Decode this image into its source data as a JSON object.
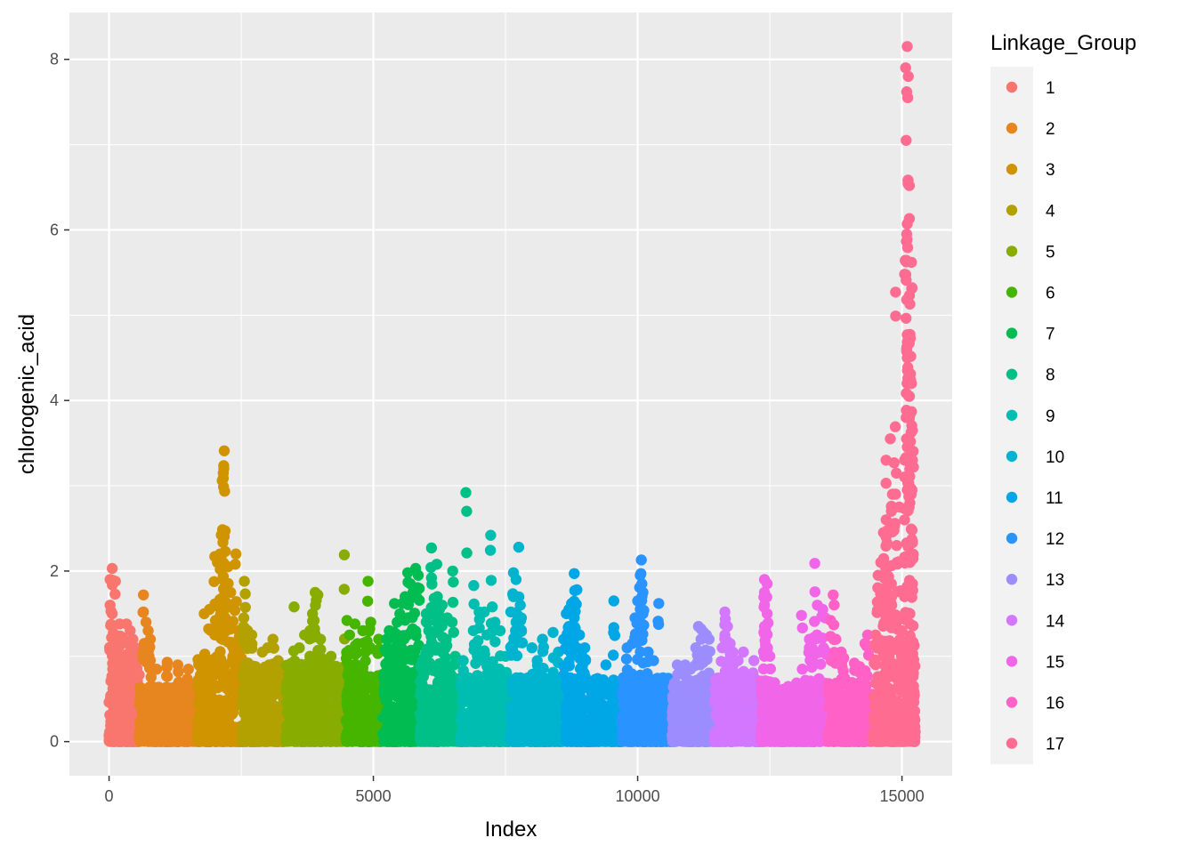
{
  "chart_data": {
    "type": "scatter",
    "xlabel": "Index",
    "ylabel": "chlorogenic_acid",
    "xlim": [
      -750,
      15950
    ],
    "ylim": [
      -0.4,
      8.55
    ],
    "x_ticks": [
      0,
      5000,
      10000,
      15000
    ],
    "x_tick_labels": [
      "0",
      "5000",
      "10000",
      "15000"
    ],
    "y_ticks": [
      0,
      2,
      4,
      6,
      8
    ],
    "y_tick_labels": [
      "0",
      "2",
      "4",
      "6",
      "8"
    ],
    "grid": true,
    "legend": {
      "title": "Linkage_Group",
      "placement": "right"
    },
    "series": [
      {
        "name": "1",
        "color": "#F8766D",
        "x_range": [
          0,
          570
        ],
        "base_max": 0.95,
        "peaks": [
          [
            60,
            2.03
          ],
          [
            20,
            1.9
          ],
          [
            80,
            1.88
          ],
          [
            120,
            1.88
          ],
          [
            20,
            1.6
          ],
          [
            60,
            1.5
          ],
          [
            200,
            1.38
          ],
          [
            330,
            1.38
          ],
          [
            400,
            1.3
          ],
          [
            100,
            1.25
          ],
          [
            250,
            1.22
          ],
          [
            450,
            1.2
          ],
          [
            500,
            1.1
          ]
        ]
      },
      {
        "name": "2",
        "color": "#E7851E",
        "x_range": [
          570,
          1670
        ],
        "base_max": 0.65,
        "peaks": [
          [
            650,
            1.72
          ],
          [
            650,
            1.52
          ],
          [
            700,
            1.4
          ],
          [
            740,
            1.3
          ],
          [
            780,
            1.2
          ],
          [
            1100,
            0.93
          ],
          [
            1300,
            0.9
          ],
          [
            1500,
            0.85
          ],
          [
            900,
            0.85
          ]
        ]
      },
      {
        "name": "3",
        "color": "#D09400",
        "x_range": [
          1670,
          2520
        ],
        "base_max": 1.0,
        "peaks": [
          [
            2180,
            3.41
          ],
          [
            2170,
            3.2
          ],
          [
            2160,
            3.15
          ],
          [
            2140,
            3.06
          ],
          [
            2400,
            2.2
          ],
          [
            2000,
            2.17
          ],
          [
            2100,
            2.2
          ],
          [
            2200,
            2.23
          ],
          [
            2050,
            2.1
          ],
          [
            2250,
            2.05
          ],
          [
            2150,
            1.9
          ],
          [
            2300,
            1.75
          ],
          [
            1900,
            1.55
          ],
          [
            1800,
            1.5
          ],
          [
            2350,
            1.6
          ],
          [
            2200,
            1.45
          ],
          [
            2100,
            1.35
          ],
          [
            2000,
            1.25
          ],
          [
            2450,
            1.3
          ],
          [
            2500,
            1.2
          ]
        ]
      },
      {
        "name": "4",
        "color": "#B2A100",
        "x_range": [
          2520,
          3350
        ],
        "base_max": 0.9,
        "peaks": [
          [
            2560,
            1.88
          ],
          [
            2550,
            1.45
          ],
          [
            2620,
            1.3
          ],
          [
            2700,
            1.25
          ],
          [
            3100,
            1.2
          ],
          [
            3000,
            1.1
          ],
          [
            2900,
            1.05
          ],
          [
            3200,
            0.95
          ]
        ]
      },
      {
        "name": "5",
        "color": "#89AC00",
        "x_range": [
          3350,
          4480
        ],
        "base_max": 0.95,
        "peaks": [
          [
            4450,
            2.19
          ],
          [
            3900,
            1.75
          ],
          [
            3950,
            1.72
          ],
          [
            3500,
            1.58
          ],
          [
            3850,
            1.5
          ],
          [
            3880,
            1.42
          ],
          [
            3800,
            1.3
          ],
          [
            3700,
            1.25
          ],
          [
            4000,
            1.2
          ],
          [
            4200,
            1.0
          ],
          [
            3600,
            1.1
          ]
        ]
      },
      {
        "name": "6",
        "color": "#45B500",
        "x_range": [
          4480,
          5180
        ],
        "base_max": 0.8,
        "peaks": [
          [
            4900,
            1.88
          ],
          [
            4500,
            1.42
          ],
          [
            4650,
            1.38
          ],
          [
            4950,
            1.4
          ],
          [
            4800,
            1.3
          ],
          [
            4550,
            1.25
          ],
          [
            5100,
            1.2
          ],
          [
            4700,
            1.15
          ],
          [
            4850,
            1.05
          ]
        ]
      },
      {
        "name": "7",
        "color": "#00BC51",
        "x_range": [
          5180,
          5880
        ],
        "base_max": 1.1,
        "peaks": [
          [
            5800,
            2.03
          ],
          [
            5650,
            1.98
          ],
          [
            5850,
            1.95
          ],
          [
            5700,
            1.85
          ],
          [
            5750,
            1.75
          ],
          [
            5600,
            1.7
          ],
          [
            5550,
            1.62
          ],
          [
            5400,
            1.62
          ],
          [
            5500,
            1.5
          ],
          [
            5450,
            1.4
          ],
          [
            5300,
            1.3
          ],
          [
            5250,
            1.2
          ],
          [
            5350,
            1.25
          ]
        ]
      },
      {
        "name": "8",
        "color": "#00C087",
        "x_range": [
          5880,
          6650
        ],
        "base_max": 0.95,
        "peaks": [
          [
            6750,
            2.92
          ],
          [
            6100,
            2.27
          ],
          [
            6200,
            2.08
          ],
          [
            6500,
            2.0
          ],
          [
            6100,
            1.92
          ],
          [
            6150,
            1.68
          ],
          [
            6300,
            1.6
          ],
          [
            6250,
            1.55
          ],
          [
            6000,
            1.5
          ],
          [
            6400,
            1.45
          ],
          [
            6200,
            1.4
          ],
          [
            6050,
            1.3
          ],
          [
            6350,
            1.2
          ],
          [
            6550,
            1.0
          ]
        ]
      },
      {
        "name": "9",
        "color": "#00BDB1",
        "x_range": [
          6650,
          7600
        ],
        "base_max": 0.75,
        "peaks": [
          [
            7220,
            2.42
          ],
          [
            6900,
            1.83
          ],
          [
            7100,
            1.52
          ],
          [
            7250,
            1.58
          ],
          [
            7000,
            1.52
          ],
          [
            7300,
            1.4
          ],
          [
            7150,
            1.25
          ],
          [
            7400,
            1.3
          ],
          [
            6950,
            1.1
          ],
          [
            7500,
            1.0
          ],
          [
            6700,
            0.95
          ]
        ]
      },
      {
        "name": "10",
        "color": "#00B4CF",
        "x_range": [
          7600,
          8650
        ],
        "base_max": 0.75,
        "peaks": [
          [
            7750,
            2.28
          ],
          [
            7650,
            1.98
          ],
          [
            7700,
            1.9
          ],
          [
            7650,
            1.7
          ],
          [
            7600,
            1.52
          ],
          [
            7780,
            1.6
          ],
          [
            7800,
            1.45
          ],
          [
            7700,
            1.4
          ],
          [
            8200,
            1.2
          ],
          [
            8400,
            1.28
          ],
          [
            8000,
            1.1
          ],
          [
            8500,
            1.05
          ],
          [
            8100,
            0.95
          ]
        ]
      },
      {
        "name": "11",
        "color": "#00A7E6",
        "x_range": [
          8650,
          9700
        ],
        "base_max": 0.75,
        "peaks": [
          [
            8800,
            1.97
          ],
          [
            8850,
            1.78
          ],
          [
            8750,
            1.62
          ],
          [
            8700,
            1.55
          ],
          [
            9550,
            1.65
          ],
          [
            8650,
            1.5
          ],
          [
            8800,
            1.45
          ],
          [
            8700,
            1.35
          ],
          [
            8900,
            1.25
          ],
          [
            8600,
            1.2
          ],
          [
            9000,
            1.1
          ],
          [
            8950,
            1.0
          ],
          [
            9400,
            0.9
          ]
        ]
      },
      {
        "name": "12",
        "color": "#2994FF",
        "x_range": [
          9700,
          10650
        ],
        "base_max": 0.75,
        "peaks": [
          [
            10070,
            2.13
          ],
          [
            10050,
            1.95
          ],
          [
            10080,
            1.85
          ],
          [
            10100,
            1.75
          ],
          [
            10000,
            1.65
          ],
          [
            10400,
            1.62
          ],
          [
            9950,
            1.45
          ],
          [
            10100,
            1.5
          ],
          [
            10050,
            1.4
          ],
          [
            10000,
            1.25
          ],
          [
            9900,
            1.15
          ],
          [
            9800,
            1.1
          ],
          [
            10200,
            1.05
          ],
          [
            10300,
            0.95
          ]
        ]
      },
      {
        "name": "13",
        "color": "#9C8DFF",
        "x_range": [
          10650,
          11450
        ],
        "base_max": 0.7,
        "peaks": [
          [
            11150,
            1.35
          ],
          [
            11200,
            1.32
          ],
          [
            11250,
            1.28
          ],
          [
            11300,
            1.25
          ],
          [
            11200,
            1.2
          ],
          [
            11100,
            1.1
          ],
          [
            11350,
            1.2
          ],
          [
            10900,
            0.9
          ],
          [
            10750,
            0.9
          ],
          [
            11000,
            0.85
          ]
        ]
      },
      {
        "name": "14",
        "color": "#D277FF",
        "x_range": [
          11450,
          12330
        ],
        "base_max": 0.75,
        "peaks": [
          [
            11650,
            1.52
          ],
          [
            11700,
            1.35
          ],
          [
            11650,
            1.25
          ],
          [
            11750,
            1.15
          ],
          [
            11800,
            1.05
          ],
          [
            12000,
            1.05
          ],
          [
            11900,
            0.95
          ],
          [
            12200,
            0.95
          ],
          [
            11600,
            1.1
          ]
        ]
      },
      {
        "name": "15",
        "color": "#F166E8",
        "x_range": [
          12330,
          13600
        ],
        "base_max": 0.72,
        "peaks": [
          [
            13350,
            2.09
          ],
          [
            12400,
            1.9
          ],
          [
            12450,
            1.85
          ],
          [
            12400,
            1.75
          ],
          [
            12400,
            1.6
          ],
          [
            12450,
            1.5
          ],
          [
            13400,
            1.6
          ],
          [
            13500,
            1.55
          ],
          [
            13100,
            1.48
          ],
          [
            13550,
            1.45
          ],
          [
            12400,
            1.35
          ],
          [
            13250,
            1.2
          ],
          [
            13300,
            1.1
          ],
          [
            13450,
            1.05
          ],
          [
            12500,
            1.0
          ]
        ]
      },
      {
        "name": "16",
        "color": "#FF61C7",
        "x_range": [
          13600,
          14450
        ],
        "base_max": 0.7,
        "peaks": [
          [
            13700,
            1.72
          ],
          [
            13650,
            1.42
          ],
          [
            13850,
            1.05
          ],
          [
            14350,
            1.25
          ],
          [
            14300,
            1.15
          ],
          [
            13900,
            0.98
          ],
          [
            14100,
            0.92
          ],
          [
            14200,
            0.88
          ],
          [
            13750,
            1.2
          ]
        ]
      },
      {
        "name": "17",
        "color": "#FF6C91",
        "x_range": [
          14450,
          15250
        ],
        "base_max": 1.2,
        "peaks": [
          [
            15100,
            8.15
          ],
          [
            15070,
            7.9
          ],
          [
            15120,
            7.8
          ],
          [
            15090,
            7.62
          ],
          [
            15110,
            7.55
          ],
          [
            15080,
            7.05
          ],
          [
            15140,
            6.52
          ],
          [
            15100,
            6.07
          ],
          [
            15090,
            5.95
          ],
          [
            15180,
            5.62
          ],
          [
            14880,
            5.27
          ],
          [
            15140,
            5.23
          ],
          [
            15150,
            5.13
          ],
          [
            15120,
            4.72
          ],
          [
            15100,
            4.5
          ],
          [
            15180,
            4.2
          ],
          [
            15130,
            4.05
          ],
          [
            15180,
            3.87
          ],
          [
            15080,
            3.8
          ],
          [
            15200,
            3.65
          ],
          [
            14780,
            3.55
          ],
          [
            15160,
            3.52
          ],
          [
            14700,
            3.3
          ],
          [
            14850,
            3.27
          ],
          [
            15050,
            3.3
          ],
          [
            15200,
            3.3
          ],
          [
            14700,
            3.03
          ],
          [
            14820,
            2.9
          ],
          [
            15100,
            2.95
          ],
          [
            15150,
            2.8
          ],
          [
            14800,
            2.7
          ],
          [
            14950,
            2.75
          ],
          [
            15050,
            2.6
          ],
          [
            14650,
            2.45
          ],
          [
            14700,
            2.4
          ],
          [
            14900,
            2.3
          ],
          [
            15200,
            2.35
          ],
          [
            14600,
            2.1
          ],
          [
            14750,
            2.05
          ],
          [
            15150,
            2.1
          ],
          [
            14550,
            1.95
          ],
          [
            14800,
            1.85
          ],
          [
            15200,
            1.85
          ],
          [
            15050,
            1.7
          ],
          [
            14650,
            1.65
          ],
          [
            15150,
            1.5
          ],
          [
            14700,
            1.45
          ],
          [
            14900,
            1.4
          ],
          [
            15000,
            1.3
          ],
          [
            14500,
            1.25
          ]
        ]
      }
    ]
  }
}
